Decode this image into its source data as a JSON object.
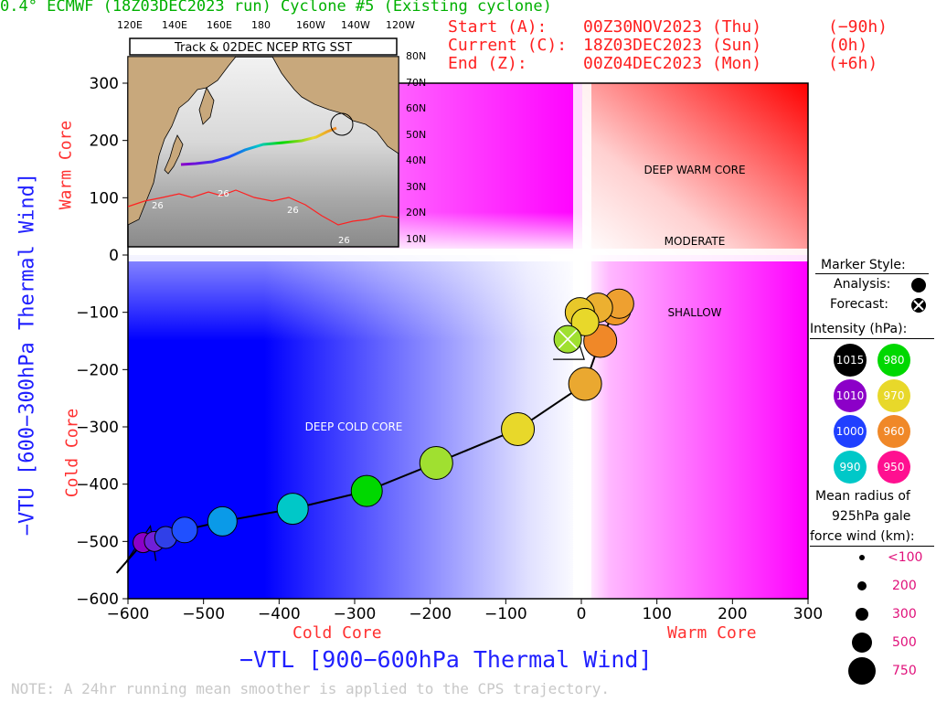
{
  "header": {
    "title": "0.4° ECMWF (18Z03DEC2023 run) Cyclone #5 (Existing cyclone)",
    "start_label": "Start (A):",
    "start_time": "00Z30NOV2023 (Thu)",
    "start_offset": "(−90h)",
    "current_label": "Current (C):",
    "current_time": "18Z03DEC2023 (Sun)",
    "current_offset": "(0h)",
    "end_label": "End (Z):",
    "end_time": "00Z04DEC2023 (Mon)",
    "end_offset": "(+6h)"
  },
  "axes": {
    "ylabel": "−VTU [600−300hPa Thermal Wind]",
    "xlabel": "−VTL [900−600hPa Thermal Wind]",
    "warm_core": "Warm Core",
    "cold_core": "Cold Core"
  },
  "regions": {
    "deep_warm": "DEEP WARM CORE",
    "moderate": "MODERATE",
    "shallow": "SHALLOW",
    "deep_cold": "DEEP COLD CORE"
  },
  "note": "NOTE:  A 24hr running mean smoother is applied to the CPS trajectory.",
  "inset": {
    "title": "Track & 02DEC NCEP RTG SST",
    "lon_labels": [
      "120E",
      "140E",
      "160E",
      "180",
      "160W",
      "140W",
      "120W"
    ],
    "lat_labels": [
      "80N",
      "70N",
      "60N",
      "50N",
      "40N",
      "30N",
      "20N",
      "10N"
    ],
    "sst_label": "26"
  },
  "legend": {
    "marker_style": "Marker Style:",
    "analysis": "Analysis:",
    "forecast": "Forecast:",
    "intensity": "Intensity (hPa):",
    "intensities": [
      {
        "label": "1015",
        "color": "#000000"
      },
      {
        "label": "980",
        "color": "#00d800"
      },
      {
        "label": "1010",
        "color": "#8c00c8"
      },
      {
        "label": "970",
        "color": "#e8d82a"
      },
      {
        "label": "1000",
        "color": "#2040ff"
      },
      {
        "label": "960",
        "color": "#f08828"
      },
      {
        "label": "990",
        "color": "#00c8c8"
      },
      {
        "label": "950",
        "color": "#ff1090"
      }
    ],
    "radius_title_1": "Mean radius of",
    "radius_title_2": "925hPa gale",
    "radius_title_3": "force wind (km):",
    "radii": [
      "<100",
      "200",
      "300",
      "500",
      "750"
    ]
  },
  "chart_data": {
    "type": "scatter",
    "title": "",
    "xlabel": "−VTL [900−600hPa Thermal Wind]",
    "ylabel": "−VTU [600−300hPa Thermal Wind]",
    "xlim": [
      -600,
      300
    ],
    "ylim": [
      -600,
      300
    ],
    "xticks": [
      -600,
      -500,
      -400,
      -300,
      -200,
      -100,
      0,
      100,
      200,
      300
    ],
    "yticks": [
      300,
      200,
      100,
      0,
      -100,
      -200,
      -300,
      -400,
      -500,
      -600
    ],
    "grid": false,
    "points": [
      {
        "x": -580,
        "y": -502,
        "color": "#8c00c8",
        "kind": "analysis"
      },
      {
        "x": -565,
        "y": -500,
        "color": "#7020d8",
        "kind": "analysis"
      },
      {
        "x": -550,
        "y": -493,
        "color": "#3040e8",
        "kind": "analysis"
      },
      {
        "x": -525,
        "y": -480,
        "color": "#2050ff",
        "kind": "analysis"
      },
      {
        "x": -475,
        "y": -465,
        "color": "#0a9ae8",
        "kind": "analysis"
      },
      {
        "x": -382,
        "y": -443,
        "color": "#00c8c8",
        "kind": "analysis"
      },
      {
        "x": -284,
        "y": -412,
        "color": "#00d800",
        "kind": "analysis"
      },
      {
        "x": -192,
        "y": -363,
        "color": "#a0e030",
        "kind": "analysis"
      },
      {
        "x": -84,
        "y": -304,
        "color": "#e8d82a",
        "kind": "analysis"
      },
      {
        "x": 5,
        "y": -225,
        "color": "#eaa830",
        "kind": "analysis"
      },
      {
        "x": 25,
        "y": -150,
        "color": "#f08828",
        "kind": "analysis"
      },
      {
        "x": 45,
        "y": -95,
        "color": "#f09828",
        "kind": "analysis"
      },
      {
        "x": 50,
        "y": -85,
        "color": "#eea030",
        "kind": "analysis"
      },
      {
        "x": 22,
        "y": -92,
        "color": "#ecb030",
        "kind": "analysis"
      },
      {
        "x": -2,
        "y": -100,
        "color": "#e8c82a",
        "kind": "analysis"
      },
      {
        "x": 5,
        "y": -117,
        "color": "#e8d82a",
        "kind": "analysis"
      },
      {
        "x": -18,
        "y": -147,
        "color": "#a0e030",
        "kind": "forecast"
      }
    ]
  }
}
